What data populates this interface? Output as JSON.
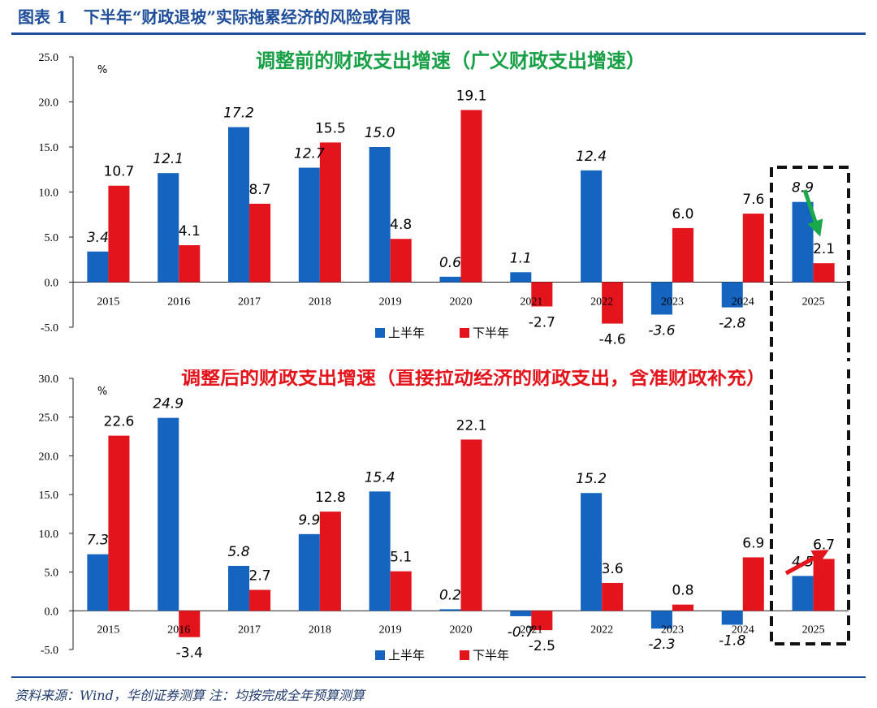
{
  "figure": {
    "title": "图表 1　下半年“财政退坡”实际拖累经济的风险或有限",
    "source": "资料来源：Wind，华创证券测算  注：均按完成全年预算测算"
  },
  "colors": {
    "first_half": "#1565c0",
    "second_half": "#e3141c",
    "top_title": "#18a047",
    "bottom_title": "#e3141c",
    "arrow_down": "#1aa84a",
    "arrow_up": "#e3141c",
    "rule": "#1f4e9a"
  },
  "chart_data": [
    {
      "type": "bar",
      "title": "调整前的财政支出增速（广义财政支出增速）",
      "unit_label": "%",
      "categories": [
        "2015",
        "2016",
        "2017",
        "2018",
        "2019",
        "2020",
        "2021",
        "2022",
        "2023",
        "2024",
        "2025"
      ],
      "series": [
        {
          "name": "上半年",
          "values": [
            3.4,
            12.1,
            17.2,
            12.7,
            15.0,
            0.6,
            1.1,
            12.4,
            -3.6,
            -2.8,
            8.9
          ]
        },
        {
          "name": "下半年",
          "values": [
            10.7,
            4.1,
            8.7,
            15.5,
            4.8,
            19.1,
            -2.7,
            -4.6,
            6.0,
            7.6,
            2.1
          ]
        }
      ],
      "ylim": [
        -5,
        25
      ],
      "yticks": [
        "25.0",
        "20.0",
        "15.0",
        "10.0",
        "5.0",
        "0.0",
        "-5.0"
      ],
      "legend": "bottom-center",
      "highlight": "2025",
      "annotation": "arrow-down-green"
    },
    {
      "type": "bar",
      "title": "调整后的财政支出增速（直接拉动经济的财政支出，含准财政补充）",
      "unit_label": "%",
      "categories": [
        "2015",
        "2016",
        "2017",
        "2018",
        "2019",
        "2020",
        "2021",
        "2022",
        "2023",
        "2024",
        "2025"
      ],
      "series": [
        {
          "name": "上半年",
          "values": [
            7.3,
            24.9,
            5.8,
            9.9,
            15.4,
            0.2,
            -0.7,
            15.2,
            -2.3,
            -1.8,
            4.5
          ]
        },
        {
          "name": "下半年",
          "values": [
            22.6,
            -3.4,
            2.7,
            12.8,
            5.1,
            22.1,
            -2.5,
            3.6,
            0.8,
            6.9,
            6.7
          ]
        }
      ],
      "ylim": [
        -5,
        30
      ],
      "yticks": [
        "30.0",
        "25.0",
        "20.0",
        "15.0",
        "10.0",
        "5.0",
        "0.0",
        "-5.0"
      ],
      "legend": "bottom-center",
      "highlight": "2025",
      "annotation": "arrow-up-red"
    }
  ]
}
